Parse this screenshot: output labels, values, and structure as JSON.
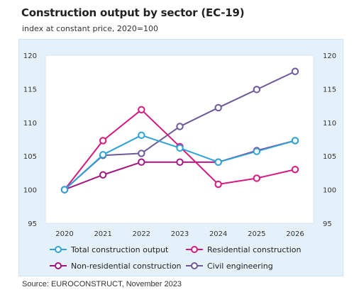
{
  "header": {
    "title": "Construction output by sector (EC-19)",
    "subtitle": "index at constant price, 2020=100"
  },
  "footer": {
    "source": "Source: EUROCONSTRUCT, November 2023"
  },
  "chart_data": {
    "type": "line",
    "title": "Construction output by sector (EC-19)",
    "subtitle": "index at constant price, 2020=100",
    "categories": [
      "2020",
      "2021",
      "2022",
      "2023",
      "2024",
      "2025",
      "2026"
    ],
    "ylim": [
      95,
      120
    ],
    "yticks": [
      "95",
      "100",
      "105",
      "110",
      "115",
      "120"
    ],
    "grid": false,
    "dual_y_axis": true,
    "legend_position": "bottom",
    "series": [
      {
        "name": "Total construction output",
        "color": "#2ea3d6",
        "values": [
          100,
          105.2,
          108.1,
          106.2,
          104.1,
          105.7,
          107.3
        ]
      },
      {
        "name": "Residential construction",
        "color": "#d6197f",
        "values": [
          100,
          107.3,
          111.9,
          106.4,
          100.8,
          101.7,
          103.0
        ]
      },
      {
        "name": "Non-residential construction",
        "color": "#a2167e",
        "values": [
          100,
          102.2,
          104.1,
          104.1,
          104.1,
          105.8,
          107.3
        ]
      },
      {
        "name": "Civil engineering",
        "color": "#6d5a96",
        "values": [
          100,
          105.1,
          105.4,
          109.4,
          112.2,
          114.9,
          117.6
        ]
      }
    ]
  }
}
